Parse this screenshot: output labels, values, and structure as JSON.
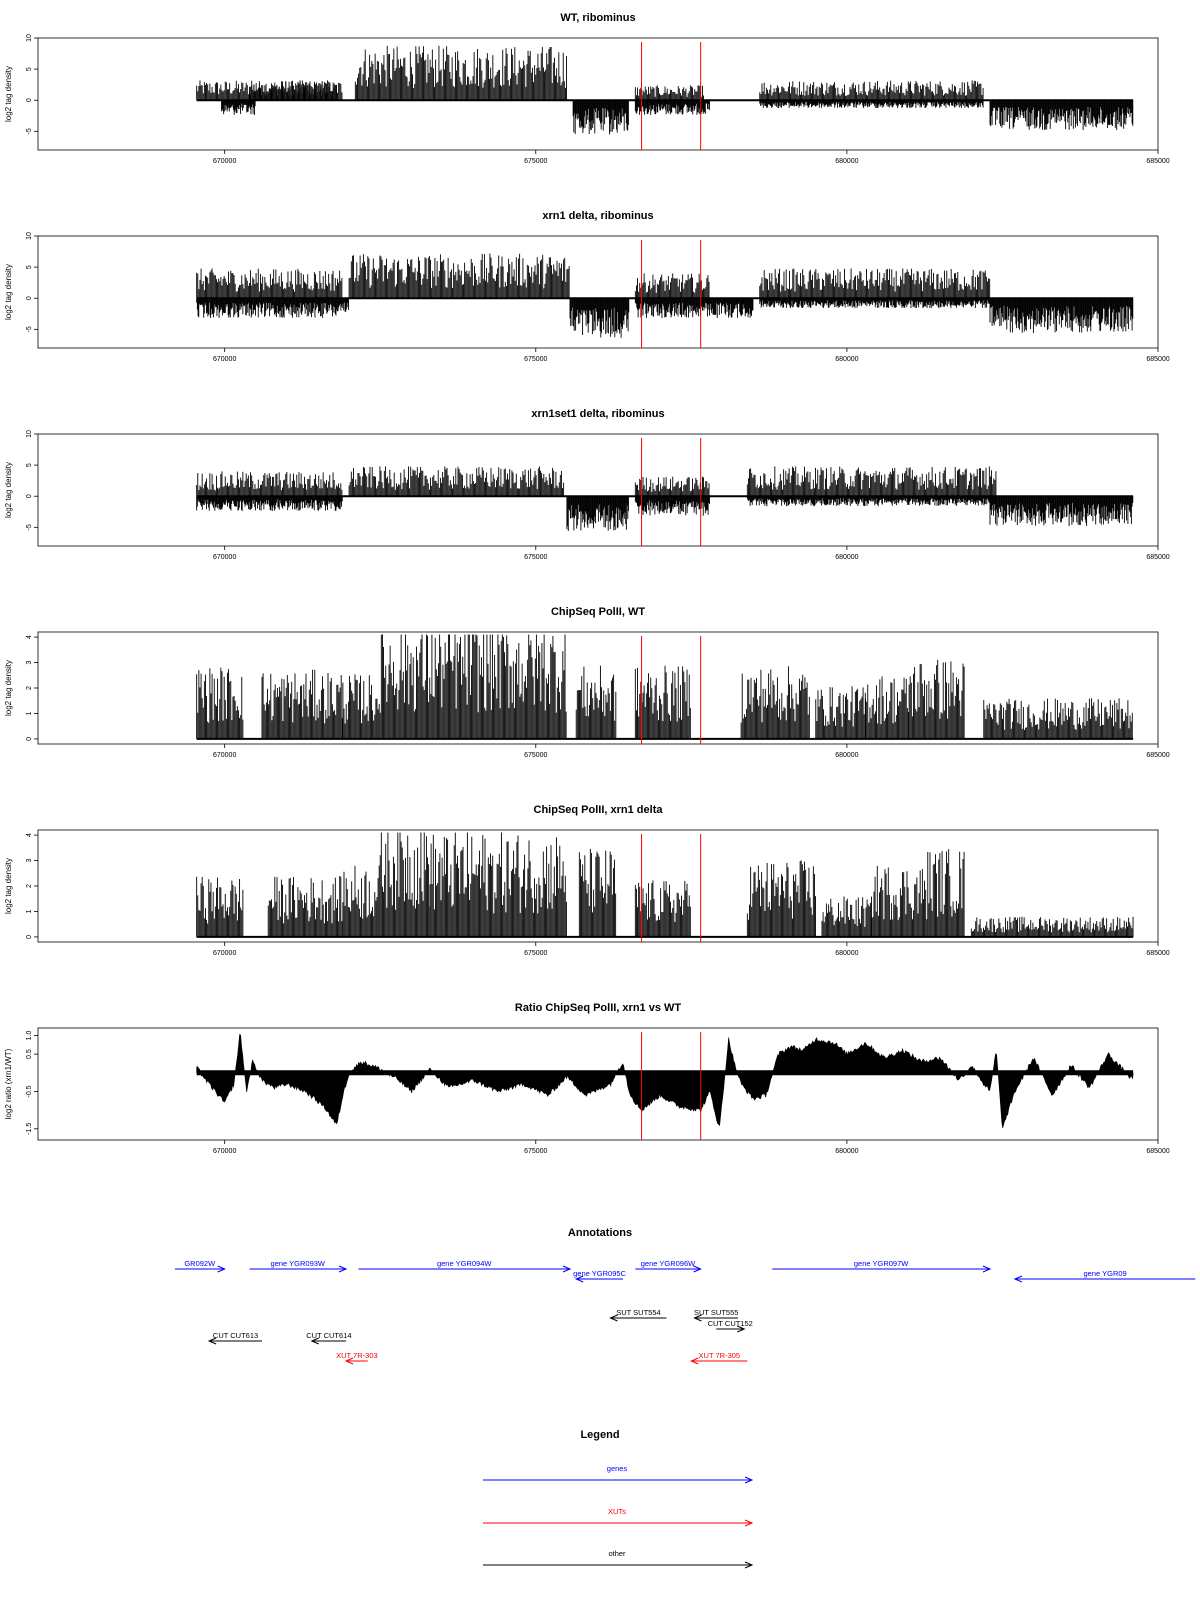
{
  "colors": {
    "gene": "#0000ff",
    "xut": "#ff0000",
    "other": "#000000",
    "marker": "#ff0000",
    "data": "#000000"
  },
  "chart_data": [
    {
      "type": "bar",
      "title": "WT, ribominus",
      "ylabel": "log2 tag density",
      "xlim": [
        667000,
        685000
      ],
      "ylim": [
        -8,
        10
      ],
      "xticks": [
        "670000",
        "675000",
        "680000",
        "685000"
      ],
      "yticks": [
        "10",
        "5",
        "0",
        "-5"
      ],
      "markers_x": [
        676700,
        677650
      ],
      "segments": [
        {
          "x": [
            669550,
            671800
          ],
          "y": 2.0,
          "sign": 1
        },
        {
          "x": [
            669950,
            670500
          ],
          "y": -1.5,
          "sign": -1
        },
        {
          "x": [
            670400,
            671900
          ],
          "y": 2.0,
          "sign": 1
        },
        {
          "x": [
            672100,
            675500
          ],
          "y": 5.5,
          "sign": 1
        },
        {
          "x": [
            675600,
            676500
          ],
          "y": -3.5,
          "sign": -1
        },
        {
          "x": [
            676600,
            677700
          ],
          "y": 1.5,
          "sign": 1
        },
        {
          "x": [
            676600,
            677800
          ],
          "y": -1.5,
          "sign": -1
        },
        {
          "x": [
            678600,
            682200
          ],
          "y": 2.0,
          "sign": 1
        },
        {
          "x": [
            678600,
            682200
          ],
          "y": -0.8,
          "sign": -1
        },
        {
          "x": [
            682300,
            684600
          ],
          "y": -3.0,
          "sign": -1
        }
      ]
    },
    {
      "type": "bar",
      "title": "xrn1 delta, ribominus",
      "ylabel": "log2 tag density",
      "xlim": [
        667000,
        685000
      ],
      "ylim": [
        -8,
        10
      ],
      "xticks": [
        "670000",
        "675000",
        "680000",
        "685000"
      ],
      "yticks": [
        "10",
        "5",
        "0",
        "-5"
      ],
      "markers_x": [
        676700,
        677650
      ],
      "segments": [
        {
          "x": [
            669550,
            671900
          ],
          "y": 3.0,
          "sign": 1
        },
        {
          "x": [
            669550,
            672000
          ],
          "y": -2.0,
          "sign": -1
        },
        {
          "x": [
            672000,
            675550
          ],
          "y": 4.5,
          "sign": 1
        },
        {
          "x": [
            675550,
            676500
          ],
          "y": -4.0,
          "sign": -1
        },
        {
          "x": [
            676600,
            677800
          ],
          "y": 2.5,
          "sign": 1
        },
        {
          "x": [
            676600,
            678500
          ],
          "y": -2.0,
          "sign": -1
        },
        {
          "x": [
            678600,
            682300
          ],
          "y": 3.0,
          "sign": 1
        },
        {
          "x": [
            678600,
            682300
          ],
          "y": -1.0,
          "sign": -1
        },
        {
          "x": [
            682300,
            684600
          ],
          "y": -3.5,
          "sign": -1
        }
      ]
    },
    {
      "type": "bar",
      "title": "xrn1set1 delta, ribominus",
      "ylabel": "log2 tag density",
      "xlim": [
        667000,
        685000
      ],
      "ylim": [
        -8,
        10
      ],
      "xticks": [
        "670000",
        "675000",
        "680000",
        "685000"
      ],
      "yticks": [
        "10",
        "5",
        "0",
        "-5"
      ],
      "markers_x": [
        676700,
        677650
      ],
      "segments": [
        {
          "x": [
            669550,
            671900
          ],
          "y": 2.5,
          "sign": 1
        },
        {
          "x": [
            669550,
            671900
          ],
          "y": -1.5,
          "sign": -1
        },
        {
          "x": [
            672000,
            675450
          ],
          "y": 3.0,
          "sign": 1
        },
        {
          "x": [
            675500,
            676500
          ],
          "y": -3.5,
          "sign": -1
        },
        {
          "x": [
            676600,
            677800
          ],
          "y": 2.0,
          "sign": 1
        },
        {
          "x": [
            676600,
            677800
          ],
          "y": -2.0,
          "sign": -1
        },
        {
          "x": [
            678400,
            682400
          ],
          "y": 3.0,
          "sign": 1
        },
        {
          "x": [
            678400,
            682400
          ],
          "y": -1.0,
          "sign": -1
        },
        {
          "x": [
            682300,
            684600
          ],
          "y": -3.0,
          "sign": -1
        }
      ]
    },
    {
      "type": "bar",
      "title": "ChipSeq PolII, WT",
      "ylabel": "log2 tag density",
      "xlim": [
        667000,
        685000
      ],
      "ylim": [
        -0.2,
        4.2
      ],
      "xticks": [
        "670000",
        "675000",
        "680000",
        "685000"
      ],
      "yticks": [
        "4",
        "3",
        "2",
        "1",
        "0"
      ],
      "markers_x": [
        676700,
        677650
      ],
      "segments": [
        {
          "x": [
            669550,
            670300
          ],
          "y": 1.8,
          "sign": 1
        },
        {
          "x": [
            670600,
            671900
          ],
          "y": 1.7,
          "sign": 1
        },
        {
          "x": [
            671900,
            672500
          ],
          "y": 1.6,
          "sign": 1
        },
        {
          "x": [
            672500,
            675500
          ],
          "y": 2.9,
          "sign": 1
        },
        {
          "x": [
            675650,
            676300
          ],
          "y": 1.8,
          "sign": 1
        },
        {
          "x": [
            676600,
            677500
          ],
          "y": 1.8,
          "sign": 1
        },
        {
          "x": [
            678300,
            679400
          ],
          "y": 1.8,
          "sign": 1
        },
        {
          "x": [
            679500,
            680300
          ],
          "y": 1.3,
          "sign": 1
        },
        {
          "x": [
            680300,
            681000
          ],
          "y": 1.6,
          "sign": 1
        },
        {
          "x": [
            681000,
            681900
          ],
          "y": 2.0,
          "sign": 1
        },
        {
          "x": [
            682200,
            684600
          ],
          "y": 1.0,
          "sign": 1
        }
      ]
    },
    {
      "type": "bar",
      "title": "ChipSeq PolII, xrn1 delta",
      "ylabel": "log2 tag density",
      "xlim": [
        667000,
        685000
      ],
      "ylim": [
        -0.2,
        4.2
      ],
      "xticks": [
        "670000",
        "675000",
        "680000",
        "685000"
      ],
      "yticks": [
        "4",
        "3",
        "2",
        "1",
        "0"
      ],
      "markers_x": [
        676700,
        677650
      ],
      "segments": [
        {
          "x": [
            669550,
            670300
          ],
          "y": 1.5,
          "sign": 1
        },
        {
          "x": [
            670700,
            671900
          ],
          "y": 1.5,
          "sign": 1
        },
        {
          "x": [
            671900,
            672500
          ],
          "y": 1.8,
          "sign": 1
        },
        {
          "x": [
            672500,
            673300
          ],
          "y": 3.0,
          "sign": 1
        },
        {
          "x": [
            673300,
            675500
          ],
          "y": 2.6,
          "sign": 1
        },
        {
          "x": [
            675700,
            676300
          ],
          "y": 2.2,
          "sign": 1
        },
        {
          "x": [
            676600,
            677500
          ],
          "y": 1.4,
          "sign": 1
        },
        {
          "x": [
            678400,
            679500
          ],
          "y": 1.9,
          "sign": 1
        },
        {
          "x": [
            679600,
            680400
          ],
          "y": 1.0,
          "sign": 1
        },
        {
          "x": [
            680400,
            681300
          ],
          "y": 1.8,
          "sign": 1
        },
        {
          "x": [
            681300,
            681900
          ],
          "y": 2.2,
          "sign": 1
        },
        {
          "x": [
            682000,
            684600
          ],
          "y": 0.5,
          "sign": 1
        }
      ]
    },
    {
      "type": "area",
      "title": "Ratio ChipSeq PolII, xrn1 vs WT",
      "ylabel": "log2 ratio (xrn1/WT)",
      "xlim": [
        667000,
        685000
      ],
      "ylim": [
        -1.8,
        1.2
      ],
      "xticks": [
        "670000",
        "675000",
        "680000",
        "685000"
      ],
      "yticks": [
        "1.0",
        "0.5",
        "-0.5",
        "-1.5"
      ],
      "markers_x": [
        676700,
        677650
      ],
      "x": [
        669550,
        669700,
        669850,
        670000,
        670150,
        670250,
        670300,
        670350,
        670450,
        670600,
        670800,
        671000,
        671300,
        671600,
        671800,
        671900,
        672000,
        672200,
        672500,
        672800,
        673000,
        673300,
        673600,
        674000,
        674400,
        674800,
        675200,
        675500,
        675800,
        676200,
        676400,
        676500,
        676600,
        676700,
        677000,
        677300,
        677650,
        677800,
        677950,
        678100,
        678200,
        678300,
        678500,
        678700,
        678900,
        679100,
        679300,
        679500,
        679800,
        680000,
        680300,
        680600,
        680900,
        681200,
        681500,
        681800,
        682000,
        682200,
        682300,
        682400,
        682500,
        682700,
        683000,
        683300,
        683600,
        683900,
        684200,
        684600
      ],
      "y": [
        0.15,
        -0.2,
        -0.5,
        -0.8,
        -0.3,
        1.1,
        0.3,
        -0.5,
        0.3,
        -0.2,
        -0.4,
        -0.3,
        -0.5,
        -0.9,
        -1.4,
        -0.6,
        0.0,
        0.3,
        0.1,
        -0.2,
        -0.5,
        0.1,
        -0.4,
        -0.2,
        -0.5,
        -0.3,
        -0.6,
        -0.1,
        -0.6,
        -0.3,
        0.3,
        -0.5,
        -0.8,
        -1.0,
        -0.6,
        -0.9,
        -1.0,
        -0.5,
        -1.5,
        0.9,
        0.2,
        -0.3,
        -0.7,
        -0.6,
        0.5,
        0.7,
        0.6,
        0.9,
        0.8,
        0.5,
        0.8,
        0.4,
        0.6,
        0.3,
        0.4,
        -0.2,
        0.2,
        -0.3,
        -0.5,
        0.6,
        -1.5,
        -0.5,
        0.4,
        -0.6,
        0.2,
        -0.4,
        0.5,
        -0.2
      ]
    },
    {
      "type": "annotation",
      "title": "Annotations",
      "xlim": [
        667000,
        685000
      ],
      "features": [
        {
          "label": "GR092W",
          "start": 669200,
          "end": 670000,
          "strand": "+",
          "kind": "gene",
          "row": 0
        },
        {
          "label": "gene YGR093W",
          "start": 670400,
          "end": 671950,
          "strand": "+",
          "kind": "gene",
          "row": 0
        },
        {
          "label": "gene YGR094W",
          "start": 672150,
          "end": 675550,
          "strand": "+",
          "kind": "gene",
          "row": 0
        },
        {
          "label": "gene YGR095C",
          "start": 675650,
          "end": 676400,
          "strand": "-",
          "kind": "gene",
          "row": 1
        },
        {
          "label": "gene YGR096W",
          "start": 676600,
          "end": 677650,
          "strand": "+",
          "kind": "gene",
          "row": 0
        },
        {
          "label": "gene YGR097W",
          "start": 678800,
          "end": 682300,
          "strand": "+",
          "kind": "gene",
          "row": 0
        },
        {
          "label": "gene YGR09",
          "start": 682700,
          "end": 685600,
          "strand": "-",
          "kind": "gene",
          "row": 1
        },
        {
          "label": "SUT SUT554",
          "start": 676200,
          "end": 677100,
          "strand": "-",
          "kind": "other",
          "row": 2
        },
        {
          "label": "SUT SUT555",
          "start": 677550,
          "end": 678250,
          "strand": "-",
          "kind": "other",
          "row": 2
        },
        {
          "label": "CUT CUT152",
          "start": 677900,
          "end": 678350,
          "strand": "+",
          "kind": "other",
          "row": 3
        },
        {
          "label": "CUT CUT613",
          "start": 669750,
          "end": 670600,
          "strand": "-",
          "kind": "other",
          "row": 4
        },
        {
          "label": "CUT CUT614",
          "start": 671400,
          "end": 671950,
          "strand": "-",
          "kind": "other",
          "row": 4
        },
        {
          "label": "XUT 7R-303",
          "start": 671950,
          "end": 672300,
          "strand": "-",
          "kind": "xut",
          "row": 5
        },
        {
          "label": "XUT 7R-305",
          "start": 677500,
          "end": 678400,
          "strand": "-",
          "kind": "xut",
          "row": 5
        }
      ]
    }
  ],
  "legend": {
    "title": "Legend",
    "items": [
      {
        "label": "genes",
        "kind": "gene"
      },
      {
        "label": "XUTs",
        "kind": "xut"
      },
      {
        "label": "other",
        "kind": "other"
      }
    ]
  }
}
